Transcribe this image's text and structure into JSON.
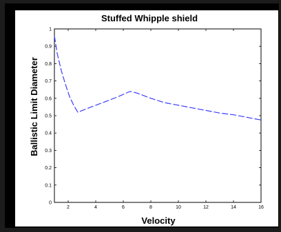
{
  "chart_data": {
    "type": "line",
    "title": "Stuffed Whipple shield",
    "xlabel": "Velocity",
    "ylabel": "Ballistic Limit Diameter",
    "xlim": [
      1,
      16
    ],
    "ylim": [
      0,
      1
    ],
    "xticks": [
      2,
      4,
      6,
      8,
      10,
      12,
      14,
      16
    ],
    "yticks": [
      0,
      0.1,
      0.2,
      0.3,
      0.4,
      0.5,
      0.6,
      0.7,
      0.8,
      0.9,
      1
    ],
    "ytick_labels": [
      "0",
      "0.1",
      "0.2",
      "0.3",
      "0.4",
      "0.5",
      "0.6",
      "0.7",
      "0.8",
      "0.9",
      "1"
    ],
    "grid": false,
    "series": [
      {
        "line_style": "dashed",
        "color": "#3b3bff",
        "x": [
          1.0,
          1.2,
          1.5,
          1.8,
          2.1,
          2.4,
          2.7,
          3.5,
          4.5,
          5.5,
          6.5,
          7.0,
          8.0,
          9.0,
          10.0,
          11.0,
          12.0,
          13.0,
          14.0,
          15.0,
          16.0
        ],
        "y": [
          0.96,
          0.86,
          0.76,
          0.68,
          0.61,
          0.56,
          0.52,
          0.545,
          0.575,
          0.605,
          0.64,
          0.63,
          0.6,
          0.575,
          0.56,
          0.545,
          0.53,
          0.515,
          0.505,
          0.49,
          0.475
        ]
      }
    ]
  },
  "colors": {
    "background": "#1c1c1c",
    "frame": "#000000",
    "panel": "#ffffff",
    "line": "#3b3bff"
  }
}
